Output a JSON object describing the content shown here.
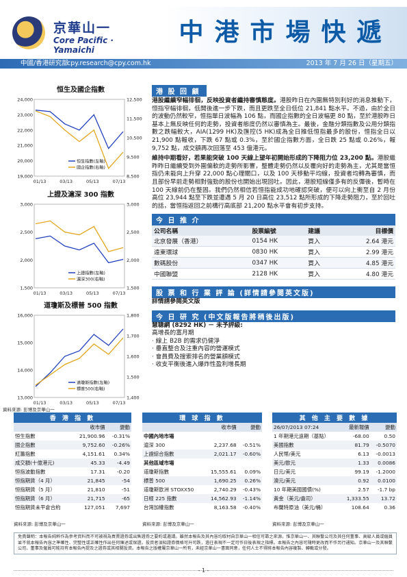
{
  "brand": {
    "name_cn": "京華山一",
    "name_en": "Core Pacific · Yamaichi"
  },
  "masthead": {
    "title": "中港市場快遞",
    "department": "中國/香港研究部",
    "email": "cpy.research@cpy.com.hk",
    "date": "2013 年 7 月 26 日（星期五）"
  },
  "charts": {
    "hs": {
      "title": "恒生及國企指數",
      "legend": [
        "恒生指數(左軸)",
        "國企指數(右軸)"
      ],
      "xticks": [
        "01/13",
        "03/13",
        "05/13",
        "07/13"
      ],
      "yleft": [
        "24,000",
        "23,000",
        "22,000",
        "21,000",
        "20,000",
        "19,000"
      ],
      "yright": [
        "12,500",
        "11,500",
        "10,500",
        "9,500",
        "8,500"
      ]
    },
    "sh": {
      "title": "上證及滬深 300 指數",
      "legend": [
        "上證指數(左軸)",
        "滬深300(右軸)"
      ],
      "xticks": [
        "01/13",
        "03/13",
        "05/13",
        "07/13"
      ],
      "yleft": [
        "3,000",
        "2,500",
        "2,000",
        "1,500"
      ],
      "yright": [
        "3,000",
        "2,500",
        "2,000",
        "1,500"
      ]
    },
    "us": {
      "title": "道瓊斯及標普 500 指數",
      "legend": [
        "道瓊斯指數(左軸)",
        "標普500(右軸)"
      ],
      "xticks": [
        "01/13",
        "03/13",
        "05/13",
        "07/13"
      ],
      "yleft": [
        "16,000",
        "15,000",
        "14,000",
        "13,000"
      ],
      "yright": [
        "1,800",
        "1,700",
        "1,600",
        "1,500",
        "1,400"
      ]
    },
    "source": "資料來源: 彭博及京華山一"
  },
  "chart_data": [
    {
      "type": "line",
      "title": "恒生及國企指數",
      "x": [
        "01/13",
        "02/13",
        "03/13",
        "04/13",
        "05/13",
        "06/13",
        "07/13"
      ],
      "series": [
        {
          "name": "恒生指數(左軸)",
          "values": [
            23300,
            23200,
            22400,
            22000,
            23000,
            20800,
            21900
          ]
        },
        {
          "name": "國企指數(右軸)",
          "values": [
            11900,
            11600,
            10900,
            10300,
            10900,
            8900,
            9750
          ]
        }
      ],
      "ylim_left": [
        19000,
        24000
      ],
      "ylim_right": [
        8500,
        12500
      ]
    },
    {
      "type": "line",
      "title": "上證及滬深 300 指數",
      "x": [
        "01/13",
        "02/13",
        "03/13",
        "04/13",
        "05/13",
        "06/13",
        "07/13"
      ],
      "series": [
        {
          "name": "上證指數(左軸)",
          "values": [
            2380,
            2430,
            2250,
            2180,
            2300,
            1950,
            2010
          ]
        },
        {
          "name": "滬深300(右軸)",
          "values": [
            2650,
            2700,
            2500,
            2450,
            2600,
            2150,
            2220
          ]
        }
      ],
      "ylim_left": [
        1500,
        3000
      ],
      "ylim_right": [
        1500,
        3000
      ]
    },
    {
      "type": "line",
      "title": "道瓊斯及標普 500 指數",
      "x": [
        "01/13",
        "02/13",
        "03/13",
        "04/13",
        "05/13",
        "06/13",
        "07/13"
      ],
      "series": [
        {
          "name": "道瓊斯指數(左軸)",
          "values": [
            13400,
            13900,
            14500,
            14700,
            15300,
            14900,
            15500
          ]
        },
        {
          "name": "標普500(右軸)",
          "values": [
            1460,
            1510,
            1560,
            1590,
            1660,
            1610,
            1690
          ]
        }
      ],
      "ylim_left": [
        13000,
        16000
      ],
      "ylim_right": [
        1400,
        1800
      ]
    }
  ],
  "review": {
    "heading": "港 股 回 顧",
    "p1_bold": "港股繼續窄幅徘徊，反映投資者繼持審慎態度。",
    "p1": "港股昨日在內圍無特別利好的消息推動下，恒指窄幅徘徊，低開後進一步下跌，而且更跌至全日低位 21,841 點水平。不過，由於全日的波動仍然較窄，恒指單日波幅為 106 點，而國企指數的全日波幅更 80 點，至於港股昨日基本上無反映任何的走勢，投資者態度仍然以審慎為主。最後，金融分類指數及公用分類指數之跌幅較大，AIA(1299 HK)及匯控(5 HK)成為全日推低恒指最多的股份，恒指全日以 21,900 點報收，下跌 67 點或 0.3%，至於國企指數方面，全日跌 25 點或 0.26%，報 9,752 點，成交額再次回落至 453 億港元。",
    "p2_bold": "維持中期看好，若果能突破 100 天線上望年初開始形成的下降阻力位 23,200 點。",
    "p2": "港股繼昨昨日繼續受到外圍偏軟的走勢所影響，整體走勢仍然以反覆向好的走勢為主，尤其是當恒指仍未能向上升穿 22,000 點心理關口，以及 100 天移動平均線，投資者均轉為審慎，而且部份早前走勢相對強勁的股份也開始出現回吐。因此，港股短線僅多有的反彈後，暫時在 100 天線前仍在整固。我們仍然相信若恒指能成功地確認突破，便可以向上衝至自 2 月份高位 23,944 點至下跌並遭遇 5 月 20 日高位 23,512 點所形成的下降走勢阻力，至於回吐的話，當恒指返回之前構行高底部 21,200 點水平會有初步支持。"
  },
  "recommend": {
    "heading": "今 日 推 介",
    "columns": [
      "公司名稱",
      "股票編號",
      "建議",
      "目標價"
    ],
    "rows": [
      [
        "北京發展（香港）",
        "0154 HK",
        "買入",
        "2.64 港元"
      ],
      [
        "遠東環球",
        "0830 HK",
        "買入",
        "2.99 港元"
      ],
      [
        "數碼股份",
        "0347 HK",
        "買入",
        "4.85 港元"
      ],
      [
        "中國聯盟",
        "2128 HK",
        "買入",
        "4.80 港元"
      ]
    ]
  },
  "strategy": {
    "heading": "股 票 和 行 業 評 論 (詳情請參閱英文版)",
    "line": "詳情請參閱英文版"
  },
  "research": {
    "heading": "今 日 研 究 (中文版報告將稍後出版)",
    "company": "慧聰網 (8292 HK) － 未予評級:",
    "subtitle": "高增長的富月期",
    "points": [
      "‧ 線上 B2B 的需求仍健淨",
      "‧ 垂直整合及注重內容的營運模式",
      "‧ 會員費及搜索排名的營業額模式",
      "‧ 收支平衡後進入爆炸性盈利增長期"
    ]
  },
  "hk_indices": {
    "heading": "香 港 指 數",
    "cols": [
      "收市價",
      "變動"
    ],
    "rows": [
      [
        "恒生指數",
        "21,900.96",
        "-0.31%"
      ],
      [
        "國企指數",
        "9,752.60",
        "-0.26%"
      ],
      [
        "紅籌指數",
        "4,151.61",
        "0.34%"
      ],
      [
        "成交額(十億港元)",
        "45.33",
        "-4.49"
      ],
      [
        "恒指波動指數",
        "17.31",
        "-0.20"
      ],
      [
        "恒指期貨（4 月）",
        "21,845",
        "-54"
      ],
      [
        "恒指期貨（5 月）",
        "21,810",
        "-51"
      ],
      [
        "恒指期貨（6 月）",
        "21,715",
        "-65"
      ],
      [
        "恒指期貨未平倉合約",
        "127,051",
        "7,697"
      ]
    ]
  },
  "world_indices": {
    "heading": "環 球 指 數",
    "cols": [
      "收市價",
      "變動"
    ],
    "groups": [
      {
        "name": "中國內地市場",
        "rows": [
          [
            "滬深 300",
            "2,237.68",
            "-0.51%"
          ],
          [
            "上證綜合指數",
            "2,021.17",
            "-0.60%"
          ]
        ]
      },
      {
        "name": "其他區域市場",
        "rows": [
          [
            "道瓊斯指數",
            "15,555.61",
            "0.09%"
          ],
          [
            "標普 500",
            "1,690.25",
            "0.26%"
          ],
          [
            "道瓊斯歐洲 STOXX50",
            "2,740.29",
            "-0.43%"
          ],
          [
            "日經 225 指數",
            "14,562.93",
            "-1.14%"
          ],
          [
            "台灣加權指數",
            "8,163.58",
            "-0.40%"
          ]
        ]
      }
    ]
  },
  "other": {
    "heading": "其 他 主 要 數 據",
    "cols": [
      "26/07/2013 07:24",
      "最新報價",
      "變動"
    ],
    "rows": [
      [
        "1 年期港元遠期（基點）",
        "-68.00",
        "0.50"
      ],
      [
        "美國指數",
        "81.79",
        "-0.5070"
      ],
      [
        "人民幣/美元",
        "6.13",
        "-0.0013"
      ],
      [
        "美元/歐元",
        "1.33",
        "0.0086"
      ],
      [
        "日元/美元",
        "99.19",
        "-1.2000"
      ],
      [
        "澳元/美元",
        "0.92",
        "0.0100"
      ],
      [
        "10 年期美國國債(%)",
        "2.57",
        "-1.7 bp"
      ],
      [
        "黃金（美元/盎司）",
        "1,333.55",
        "13.72"
      ],
      [
        "布蘭特原油（美元/桶）",
        "108.64",
        "0.36"
      ]
    ]
  },
  "table_source": "資料來源: 彭博及京華山一",
  "disclaimer": "免責聲明：本報告純粹作為參考資料而不可被視為買賣證券或出售證券之要約或邀請。雖然本報告及其內容均取材自京華山一相信可靠之來源，惟京華山一、其聯繫公司及其任何董事、高級人員或僱員並不就本報告內容之準確性、完整性或正確性作出任何陳述或保證。投資者須知證券價格可升可跌，過往表現不一定可作日後表現之指標。本報告之內容可隨時更改而不作另行通知。京華山一及其聯繫公司、董事及僱員可能持有本報告內提及之證券或其相關投資。本報告之版權屬京華山一所有，未經京華山一書面同意，任何人士不得將本報告內容複製、轉載或分發。",
  "page_number": "- 1 -"
}
